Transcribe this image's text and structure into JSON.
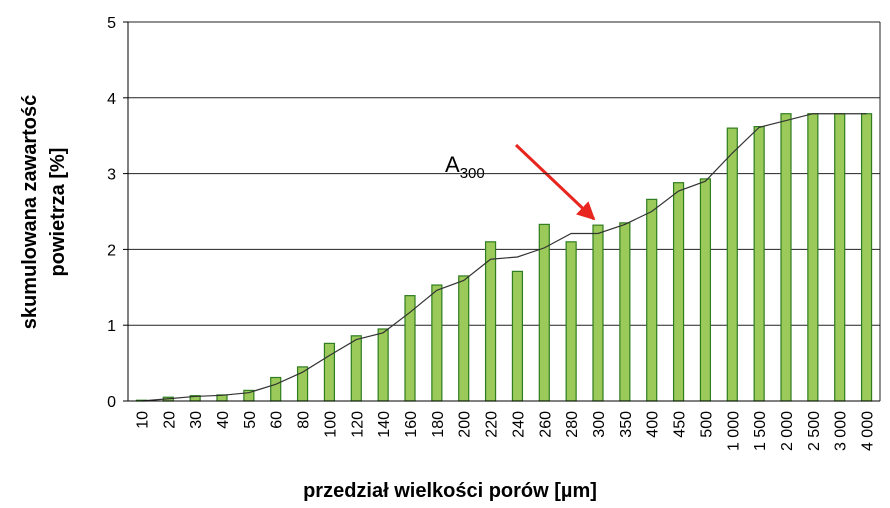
{
  "chart_data": {
    "type": "bar",
    "xlabel": "przedział wielkości porów [µm]",
    "ylabel": [
      "skumulowana zawartość",
      "powietrza [%]"
    ],
    "annotation": {
      "text": "A",
      "subscript": "300"
    },
    "categories": [
      "10",
      "20",
      "30",
      "40",
      "50",
      "60",
      "80",
      "100",
      "120",
      "140",
      "160",
      "180",
      "200",
      "220",
      "240",
      "260",
      "280",
      "300",
      "350",
      "400",
      "450",
      "500",
      "1 000",
      "1 500",
      "2 000",
      "2 500",
      "3 000",
      "4 000"
    ],
    "series": [
      {
        "type": "bar",
        "color": "#9bc95a",
        "values": [
          0.01,
          0.05,
          0.07,
          0.08,
          0.14,
          0.31,
          0.45,
          0.76,
          0.86,
          0.95,
          1.39,
          1.53,
          1.65,
          2.1,
          1.71,
          2.33,
          2.1,
          2.32,
          2.35,
          2.66,
          2.88,
          2.93,
          3.6,
          3.62,
          3.79,
          3.79,
          3.79,
          3.79
        ]
      },
      {
        "type": "line",
        "color": "#333333",
        "values": [
          0,
          0.03,
          0.06,
          0.075,
          0.11,
          0.22,
          0.38,
          0.6,
          0.81,
          0.9,
          1.17,
          1.46,
          1.59,
          1.87,
          1.9,
          2.02,
          2.21,
          2.21,
          2.33,
          2.5,
          2.77,
          2.9,
          3.27,
          3.61,
          3.7,
          3.79,
          3.79,
          3.79
        ]
      }
    ],
    "ylim": [
      0,
      5
    ],
    "yticks": [
      0,
      1,
      2,
      3,
      4,
      5
    ],
    "grid": true
  }
}
